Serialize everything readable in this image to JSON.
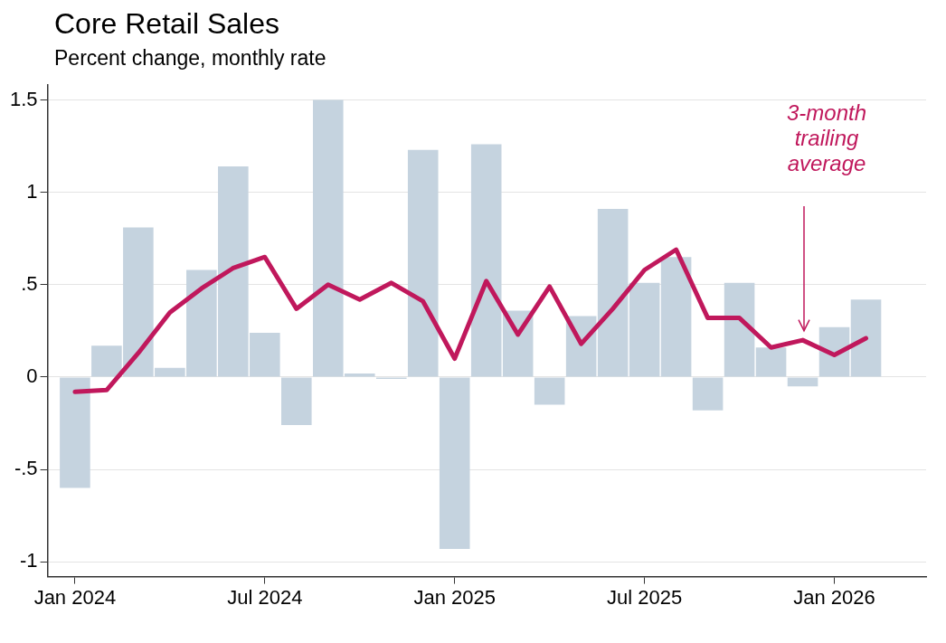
{
  "chart_data": {
    "type": "bar",
    "title": "Core Retail Sales",
    "subtitle": "Percent change, monthly rate",
    "x": [
      "2024-01",
      "2024-02",
      "2024-03",
      "2024-04",
      "2024-05",
      "2024-06",
      "2024-07",
      "2024-08",
      "2024-09",
      "2024-10",
      "2024-11",
      "2024-12",
      "2025-01",
      "2025-02",
      "2025-03",
      "2025-04",
      "2025-05",
      "2025-06",
      "2025-07",
      "2025-08",
      "2025-09",
      "2025-10",
      "2025-11",
      "2025-12",
      "2026-01",
      "2026-02"
    ],
    "series": [
      {
        "color": "#c5d3df",
        "values": [
          -0.6,
          0.17,
          0.81,
          0.05,
          0.58,
          1.14,
          0.24,
          -0.26,
          1.5,
          0.02,
          -0.01,
          1.23,
          -0.93,
          1.26,
          0.36,
          -0.15,
          0.33,
          0.91,
          0.51,
          0.65,
          -0.18,
          0.51,
          0.16,
          -0.05,
          0.27,
          0.42
        ]
      },
      {
        "type": "line",
        "color": "#c0185c",
        "values": [
          -0.08,
          -0.07,
          0.13,
          0.35,
          0.48,
          0.59,
          0.65,
          0.37,
          0.5,
          0.42,
          0.51,
          0.41,
          0.1,
          0.52,
          0.23,
          0.49,
          0.18,
          0.37,
          0.58,
          0.69,
          0.32,
          0.32,
          0.16,
          0.2,
          0.12,
          0.21
        ]
      }
    ],
    "xlim": [
      "2023-12-05",
      "2026-03-28"
    ],
    "xticks": [
      {
        "value": "2024-01",
        "label": "Jan 2024"
      },
      {
        "value": "2024-07",
        "label": "Jul 2024"
      },
      {
        "value": "2025-01",
        "label": "Jan 2025"
      },
      {
        "value": "2025-07",
        "label": "Jul 2025"
      },
      {
        "value": "2026-01",
        "label": "Jan 2026"
      }
    ],
    "ylim": [
      -1.08,
      1.58
    ],
    "yticks": [
      {
        "value": -1,
        "label": "-1"
      },
      {
        "value": -0.5,
        "label": "-.5"
      },
      0,
      {
        "value": 0.5,
        "label": ".5"
      },
      1,
      1.5
    ],
    "grid": "y",
    "marker": "none",
    "line_style": "solid",
    "annotations": [
      "3-month\ntrailing\naverage"
    ]
  }
}
